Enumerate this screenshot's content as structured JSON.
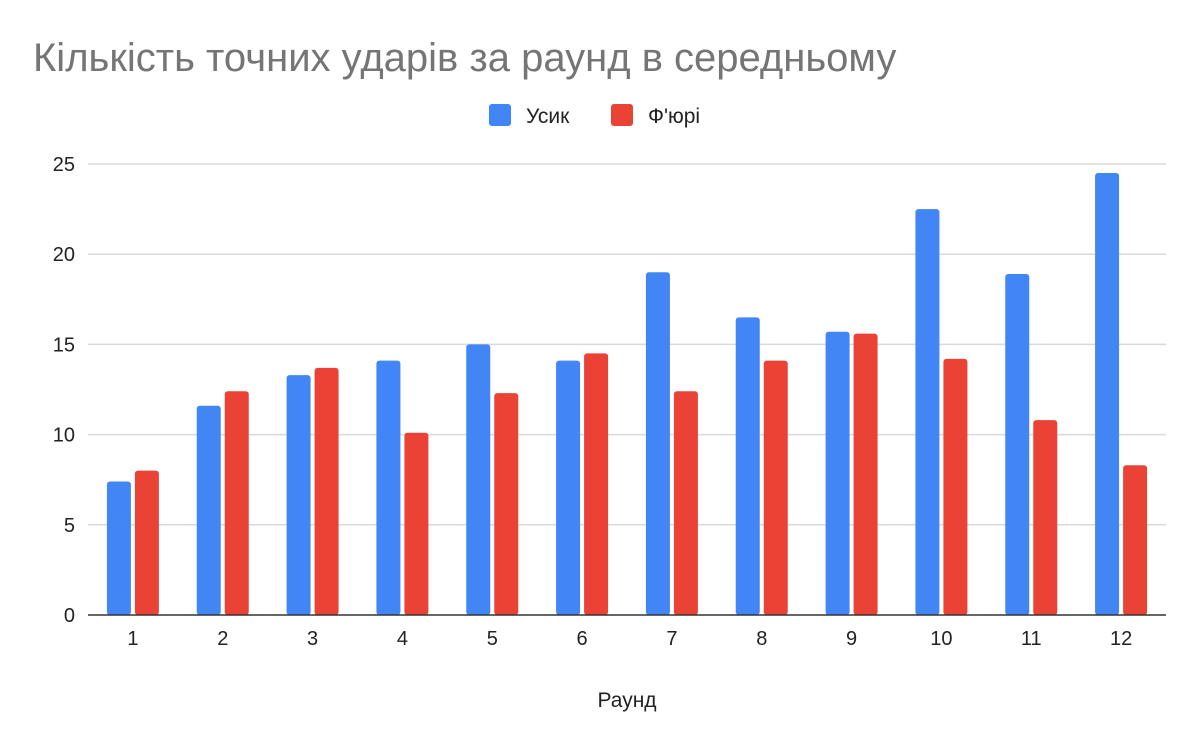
{
  "chart_data": {
    "type": "bar",
    "title": "Кількість точних ударів за раунд в середньому",
    "xlabel": "Раунд",
    "ylabel": "",
    "categories": [
      "1",
      "2",
      "3",
      "4",
      "5",
      "6",
      "7",
      "8",
      "9",
      "10",
      "11",
      "12"
    ],
    "series": [
      {
        "name": "Усик",
        "color": "#4285f4",
        "values": [
          7.4,
          11.6,
          13.3,
          14.1,
          15.0,
          14.1,
          19.0,
          16.5,
          15.7,
          22.5,
          18.9,
          24.5
        ]
      },
      {
        "name": "Ф'юрі",
        "color": "#ea4335",
        "values": [
          8.0,
          12.4,
          13.7,
          10.1,
          12.3,
          14.5,
          12.4,
          14.1,
          15.6,
          14.2,
          10.8,
          8.3
        ]
      }
    ],
    "ylim": [
      0,
      25
    ],
    "yticks": [
      0,
      5,
      10,
      15,
      20,
      25
    ],
    "grid": true,
    "legend_position": "top-center"
  }
}
